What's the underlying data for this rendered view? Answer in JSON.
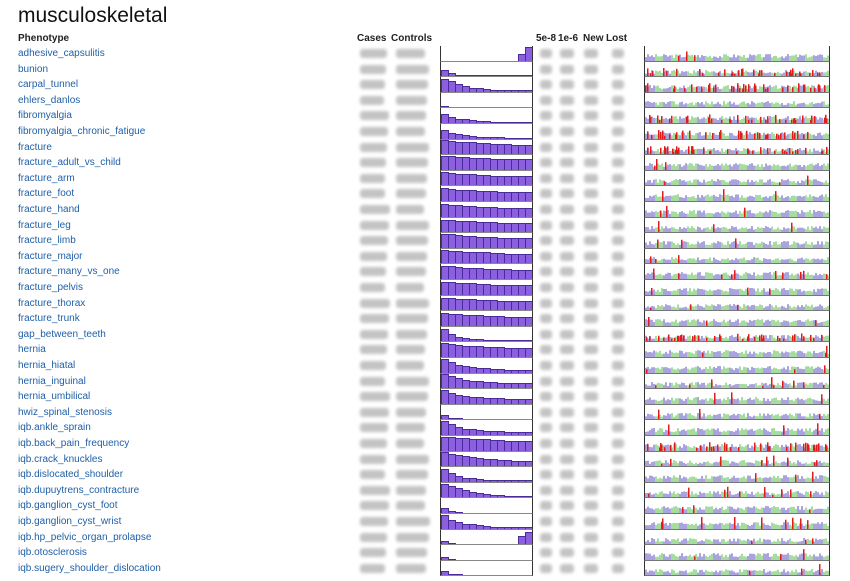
{
  "title": "musculoskeletal",
  "headers": {
    "phenotype": "Phenotype",
    "cases": "Cases",
    "controls": "Controls",
    "p5e8": "5e-8",
    "p1e6": "1e-6",
    "new": "New",
    "lost": "Lost"
  },
  "colors": {
    "link": "#1f5fa8",
    "hist_fill": "#8b5fe0",
    "hit": "#e31a1c",
    "chrom_a": "#a9a3de",
    "chrom_b": "#a6dca0"
  },
  "phenotypes": [
    {
      "name": "adhesive_capsulitis",
      "hist": [
        0,
        0,
        0,
        0,
        0,
        0,
        0,
        0,
        0,
        0,
        0,
        0.5,
        1.0
      ],
      "hits": 1
    },
    {
      "name": "bunion",
      "hist": [
        0.45,
        0.2,
        0.1,
        0.05,
        0.05,
        0.05,
        0.05,
        0.05,
        0.05,
        0.05,
        0.05,
        0.05,
        0.05
      ],
      "hits": 3
    },
    {
      "name": "carpal_tunnel",
      "hist": [
        0.9,
        0.75,
        0.55,
        0.4,
        0.3,
        0.25,
        0.2,
        0.15,
        0.12,
        0.1,
        0.1,
        0.1,
        0.1
      ],
      "hits": 3
    },
    {
      "name": "ehlers_danlos",
      "hist": [
        0.1,
        0,
        0,
        0,
        0,
        0,
        0,
        0,
        0,
        0,
        0,
        0,
        0
      ],
      "hits": 0
    },
    {
      "name": "fibromyalgia",
      "hist": [
        0.65,
        0.45,
        0.3,
        0.25,
        0.2,
        0.15,
        0.12,
        0.1,
        0.08,
        0.08,
        0.06,
        0.06,
        0.06
      ],
      "hits": 3
    },
    {
      "name": "fibromyalgia_chronic_fatigue",
      "hist": [
        0.6,
        0.4,
        0.3,
        0.25,
        0.2,
        0.15,
        0.12,
        0.1,
        0.08,
        0.06,
        0.06,
        0.06,
        0.06
      ],
      "hits": 3
    },
    {
      "name": "fracture",
      "hist": [
        1.0,
        0.95,
        0.9,
        0.88,
        0.85,
        0.8,
        0.78,
        0.75,
        0.72,
        0.7,
        0.68,
        0.65,
        0.65
      ],
      "hits": 3
    },
    {
      "name": "fracture_adult_vs_child",
      "hist": [
        1.0,
        0.95,
        0.9,
        0.9,
        0.85,
        0.85,
        0.82,
        0.8,
        0.8,
        0.78,
        0.78,
        0.78,
        0.78
      ],
      "hits": 1
    },
    {
      "name": "fracture_arm",
      "hist": [
        0.95,
        0.9,
        0.85,
        0.8,
        0.78,
        0.75,
        0.72,
        0.7,
        0.68,
        0.65,
        0.65,
        0.65,
        0.65
      ],
      "hits": 1
    },
    {
      "name": "fracture_foot",
      "hist": [
        0.9,
        0.85,
        0.8,
        0.78,
        0.75,
        0.72,
        0.7,
        0.68,
        0.65,
        0.65,
        0.62,
        0.62,
        0.62
      ],
      "hits": 1
    },
    {
      "name": "fracture_hand",
      "hist": [
        0.9,
        0.85,
        0.8,
        0.78,
        0.75,
        0.72,
        0.7,
        0.68,
        0.65,
        0.62,
        0.62,
        0.6,
        0.6
      ],
      "hits": 1
    },
    {
      "name": "fracture_leg",
      "hist": [
        0.9,
        0.85,
        0.82,
        0.8,
        0.78,
        0.75,
        0.72,
        0.7,
        0.68,
        0.68,
        0.65,
        0.65,
        0.65
      ],
      "hits": 1
    },
    {
      "name": "fracture_limb",
      "hist": [
        1.0,
        0.95,
        0.9,
        0.85,
        0.82,
        0.8,
        0.78,
        0.75,
        0.72,
        0.7,
        0.7,
        0.68,
        0.68
      ],
      "hits": 1
    },
    {
      "name": "fracture_major",
      "hist": [
        0.95,
        0.9,
        0.88,
        0.85,
        0.82,
        0.8,
        0.78,
        0.75,
        0.72,
        0.7,
        0.7,
        0.68,
        0.68
      ],
      "hits": 1
    },
    {
      "name": "fracture_many_vs_one",
      "hist": [
        0.95,
        0.9,
        0.85,
        0.8,
        0.78,
        0.75,
        0.72,
        0.7,
        0.68,
        0.68,
        0.65,
        0.65,
        0.65
      ],
      "hits": 2
    },
    {
      "name": "fracture_pelvis",
      "hist": [
        0.9,
        0.88,
        0.85,
        0.82,
        0.8,
        0.78,
        0.75,
        0.72,
        0.7,
        0.7,
        0.68,
        0.68,
        0.68
      ],
      "hits": 1
    },
    {
      "name": "fracture_thorax",
      "hist": [
        0.9,
        0.85,
        0.82,
        0.8,
        0.78,
        0.75,
        0.72,
        0.7,
        0.68,
        0.65,
        0.65,
        0.65,
        0.65
      ],
      "hits": 1
    },
    {
      "name": "fracture_trunk",
      "hist": [
        0.9,
        0.85,
        0.82,
        0.8,
        0.78,
        0.75,
        0.72,
        0.7,
        0.68,
        0.65,
        0.65,
        0.65,
        0.65
      ],
      "hits": 1
    },
    {
      "name": "gap_between_teeth",
      "hist": [
        0.9,
        0.55,
        0.35,
        0.25,
        0.2,
        0.15,
        0.12,
        0.1,
        0.1,
        0.08,
        0.08,
        0.08,
        0.08
      ],
      "hits": 3
    },
    {
      "name": "hernia",
      "hist": [
        1.0,
        0.9,
        0.85,
        0.8,
        0.78,
        0.75,
        0.72,
        0.7,
        0.68,
        0.65,
        0.65,
        0.62,
        0.62
      ],
      "hits": 1
    },
    {
      "name": "hernia_hiatal",
      "hist": [
        0.95,
        0.75,
        0.55,
        0.45,
        0.4,
        0.35,
        0.3,
        0.28,
        0.25,
        0.22,
        0.2,
        0.2,
        0.2
      ],
      "hits": 1
    },
    {
      "name": "hernia_inguinal",
      "hist": [
        1.0,
        0.85,
        0.7,
        0.6,
        0.55,
        0.5,
        0.45,
        0.42,
        0.4,
        0.38,
        0.36,
        0.35,
        0.35
      ],
      "hits": 2
    },
    {
      "name": "hernia_umbilical",
      "hist": [
        0.95,
        0.8,
        0.65,
        0.55,
        0.5,
        0.45,
        0.42,
        0.4,
        0.38,
        0.36,
        0.35,
        0.35,
        0.35
      ],
      "hits": 1
    },
    {
      "name": "hwiz_spinal_stenosis",
      "hist": [
        0.3,
        0.1,
        0.05,
        0,
        0,
        0,
        0,
        0,
        0,
        0,
        0,
        0,
        0
      ],
      "hits": 1
    },
    {
      "name": "iqb.ankle_sprain",
      "hist": [
        1.0,
        0.75,
        0.55,
        0.45,
        0.4,
        0.35,
        0.3,
        0.28,
        0.25,
        0.22,
        0.2,
        0.2,
        0.2
      ],
      "hits": 1
    },
    {
      "name": "iqb.back_pain_frequency",
      "hist": [
        1.0,
        0.95,
        0.9,
        0.88,
        0.85,
        0.82,
        0.8,
        0.78,
        0.75,
        0.72,
        0.7,
        0.7,
        0.7
      ],
      "hits": 3
    },
    {
      "name": "iqb.crack_knuckles",
      "hist": [
        1.0,
        0.9,
        0.8,
        0.7,
        0.65,
        0.6,
        0.55,
        0.5,
        0.45,
        0.42,
        0.4,
        0.4,
        0.4
      ],
      "hits": 2
    },
    {
      "name": "iqb.dislocated_shoulder",
      "hist": [
        0.9,
        0.6,
        0.4,
        0.3,
        0.25,
        0.2,
        0.15,
        0.12,
        0.1,
        0.1,
        0.1,
        0.1,
        0.1
      ],
      "hits": 1
    },
    {
      "name": "iqb.dupuytrens_contracture",
      "hist": [
        0.95,
        0.8,
        0.65,
        0.5,
        0.4,
        0.3,
        0.25,
        0.2,
        0.15,
        0.12,
        0.1,
        0.1,
        0.1
      ],
      "hits": 2
    },
    {
      "name": "iqb.ganglion_cyst_foot",
      "hist": [
        0.35,
        0.15,
        0.05,
        0,
        0,
        0,
        0,
        0,
        0,
        0,
        0,
        0,
        0
      ],
      "hits": 1
    },
    {
      "name": "iqb.ganglion_cyst_wrist",
      "hist": [
        0.95,
        0.65,
        0.45,
        0.35,
        0.3,
        0.25,
        0.2,
        0.15,
        0.12,
        0.1,
        0.1,
        0.1,
        0.1
      ],
      "hits": 2
    },
    {
      "name": "iqb.hp_pelvic_organ_prolapse",
      "hist": [
        0.25,
        0.05,
        0,
        0,
        0,
        0,
        0,
        0,
        0,
        0,
        0,
        0.6,
        0.9
      ],
      "hits": 1
    },
    {
      "name": "iqb.otosclerosis",
      "hist": [
        0.2,
        0.05,
        0,
        0,
        0,
        0,
        0,
        0,
        0,
        0,
        0,
        0,
        0
      ],
      "hits": 1
    },
    {
      "name": "iqb.sugery_shoulder_dislocation",
      "hist": [
        0.3,
        0.1,
        0.05,
        0,
        0,
        0,
        0,
        0,
        0,
        0,
        0,
        0,
        0
      ],
      "hits": 1
    }
  ]
}
